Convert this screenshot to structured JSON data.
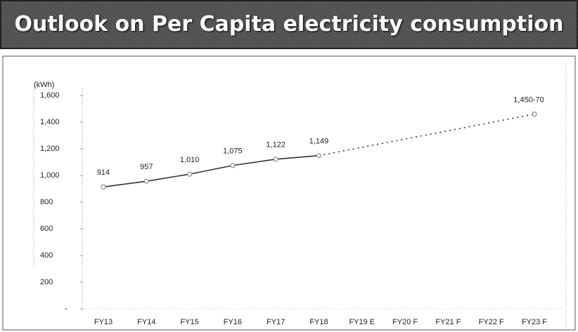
{
  "chart_data": {
    "type": "line",
    "title": "Outlook on Per Capita electricity consumption",
    "y_unit_label": "(kWh)",
    "categories": [
      "FY13",
      "FY14",
      "FY15",
      "FY16",
      "FY17",
      "FY18",
      "FY19 E",
      "FY20 F",
      "FY21 F",
      "FY22 F",
      "FY23 F"
    ],
    "series": [
      {
        "color": "#333333",
        "values": [
          914,
          957,
          1010,
          1075,
          1122,
          1149,
          null,
          null,
          null,
          null,
          1460
        ],
        "value_labels": [
          "914",
          "957",
          "1,010",
          "1,075",
          "1,122",
          "1,149",
          null,
          null,
          null,
          null,
          "1,450-70"
        ]
      }
    ],
    "dashed_from_index": 5,
    "connect_gaps": true,
    "ylim": [
      0,
      1600
    ],
    "yticks": [
      {
        "value": 0,
        "label": "-"
      },
      200,
      400,
      600,
      800,
      {
        "value": 1000,
        "label": "1,000"
      },
      {
        "value": 1200,
        "label": "1,200"
      },
      {
        "value": 1400,
        "label": "1,400"
      },
      {
        "value": 1600,
        "label": "1,600"
      }
    ],
    "grid": false
  }
}
